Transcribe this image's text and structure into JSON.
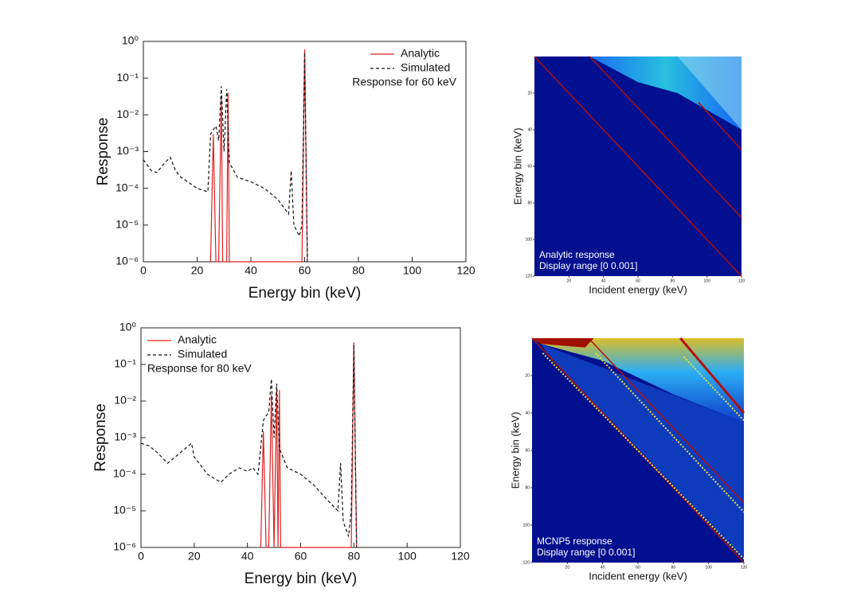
{
  "chart_data": [
    {
      "type": "line",
      "xlabel": "Energy bin (keV)",
      "ylabel": "Response",
      "annotation": "Response for 60 keV",
      "log_y": true,
      "grid": false,
      "legend": "upper right",
      "xlim": [
        0,
        120
      ],
      "xticks": [
        0,
        20,
        40,
        60,
        80,
        100,
        120
      ],
      "ylim": [
        1e-06,
        1
      ],
      "yticks": [
        {
          "value": 1e-06,
          "label": "10⁻⁶"
        },
        {
          "value": 1e-05,
          "label": "10⁻⁵"
        },
        {
          "value": 0.0001,
          "label": "10⁻⁴"
        },
        {
          "value": 0.001,
          "label": "10⁻³"
        },
        {
          "value": 0.01,
          "label": "10⁻²"
        },
        {
          "value": 0.1,
          "label": "10⁻¹"
        },
        {
          "value": 1,
          "label": "10⁰"
        }
      ],
      "series": [
        {
          "name": "Analytic",
          "color": "#e0201f",
          "dash": false,
          "x": [
            25,
            26,
            27,
            28,
            29,
            29.5,
            30,
            31,
            31.5,
            32,
            59,
            60,
            61
          ],
          "values": [
            1e-06,
            0.003,
            1e-06,
            1e-06,
            0.03,
            1e-06,
            1e-06,
            1e-06,
            0.04,
            1e-06,
            1e-06,
            0.6,
            1e-06
          ]
        },
        {
          "name": "Simulated",
          "color": "#111111",
          "dash": true,
          "x": [
            0,
            3,
            5,
            8,
            10,
            12,
            14,
            20,
            24,
            25,
            27,
            28,
            29,
            30,
            31,
            32,
            35,
            40,
            45,
            50,
            54,
            55,
            56,
            58,
            59,
            60,
            61
          ],
          "values": [
            0.0006,
            0.0003,
            0.00027,
            0.0005,
            0.0007,
            0.0003,
            0.0002,
            0.0001,
            8e-05,
            0.003,
            0.005,
            0.002,
            0.06,
            0.001,
            0.05,
            0.0005,
            0.0002,
            0.00015,
            0.0001,
            5e-05,
            2e-05,
            0.0003,
            1e-05,
            5e-06,
            1e-05,
            0.5,
            1e-06
          ]
        }
      ]
    },
    {
      "type": "heatmap",
      "xlabel": "Incident energy (keV)",
      "ylabel": "Energy bin (keV)",
      "annotation": [
        "Analytic response",
        "Display range [0 0.001]"
      ],
      "xlim": [
        0,
        120
      ],
      "xticks": [
        20,
        40,
        60,
        80,
        100,
        120
      ],
      "ylim": [
        120,
        0
      ],
      "yticks": [
        20,
        40,
        60,
        80,
        100,
        120
      ]
    },
    {
      "type": "line",
      "xlabel": "Energy bin (keV)",
      "ylabel": "Response",
      "annotation": "Response for 80 keV",
      "log_y": true,
      "grid": false,
      "legend": "upper left",
      "xlim": [
        0,
        120
      ],
      "xticks": [
        0,
        20,
        40,
        60,
        80,
        100,
        120
      ],
      "ylim": [
        1e-06,
        1
      ],
      "yticks": [
        {
          "value": 1e-06,
          "label": "10⁻⁶"
        },
        {
          "value": 1e-05,
          "label": "10⁻⁵"
        },
        {
          "value": 0.0001,
          "label": "10⁻⁴"
        },
        {
          "value": 0.001,
          "label": "10⁻³"
        },
        {
          "value": 0.01,
          "label": "10⁻²"
        },
        {
          "value": 0.1,
          "label": "10⁻¹"
        },
        {
          "value": 1,
          "label": "10⁰"
        }
      ],
      "series": [
        {
          "name": "Analytic",
          "color": "#e0201f",
          "dash": false,
          "x": [
            45,
            46,
            47,
            48,
            49,
            50,
            51,
            51.5,
            52,
            52.5,
            53,
            79,
            80,
            81
          ],
          "values": [
            1e-06,
            0.0015,
            1e-06,
            1e-06,
            0.015,
            1e-06,
            0.02,
            1e-06,
            0.02,
            1e-06,
            1e-06,
            1e-06,
            0.4,
            1e-06
          ]
        },
        {
          "name": "Simulated",
          "color": "#111111",
          "dash": true,
          "x": [
            0,
            3,
            6,
            10,
            15,
            19,
            20,
            25,
            30,
            33,
            37,
            40,
            42,
            44,
            46,
            48,
            49,
            50,
            51,
            52,
            55,
            60,
            65,
            70,
            74,
            75,
            76,
            78,
            79,
            80,
            81
          ],
          "values": [
            0.0007,
            0.0006,
            0.0004,
            0.0002,
            0.0004,
            0.0007,
            0.0003,
            0.0001,
            6e-05,
            0.0001,
            0.00015,
            0.00012,
            0.00015,
            0.0001,
            0.003,
            0.005,
            0.04,
            0.001,
            0.03,
            0.0005,
            0.00015,
            0.0001,
            5e-05,
            2e-05,
            1e-05,
            0.0002,
            5e-06,
            2e-06,
            1e-05,
            0.35,
            1e-06
          ]
        }
      ]
    },
    {
      "type": "heatmap",
      "xlabel": "Incident energy (keV)",
      "ylabel": "Energy bin (keV)",
      "annotation": [
        "MCNP5 response",
        "Display range [0 0.001]"
      ],
      "xlim": [
        0,
        120
      ],
      "xticks": [
        20,
        40,
        60,
        80,
        100,
        120
      ],
      "ylim": [
        120,
        0
      ],
      "yticks": [
        20,
        40,
        60,
        80,
        100,
        120
      ]
    }
  ]
}
